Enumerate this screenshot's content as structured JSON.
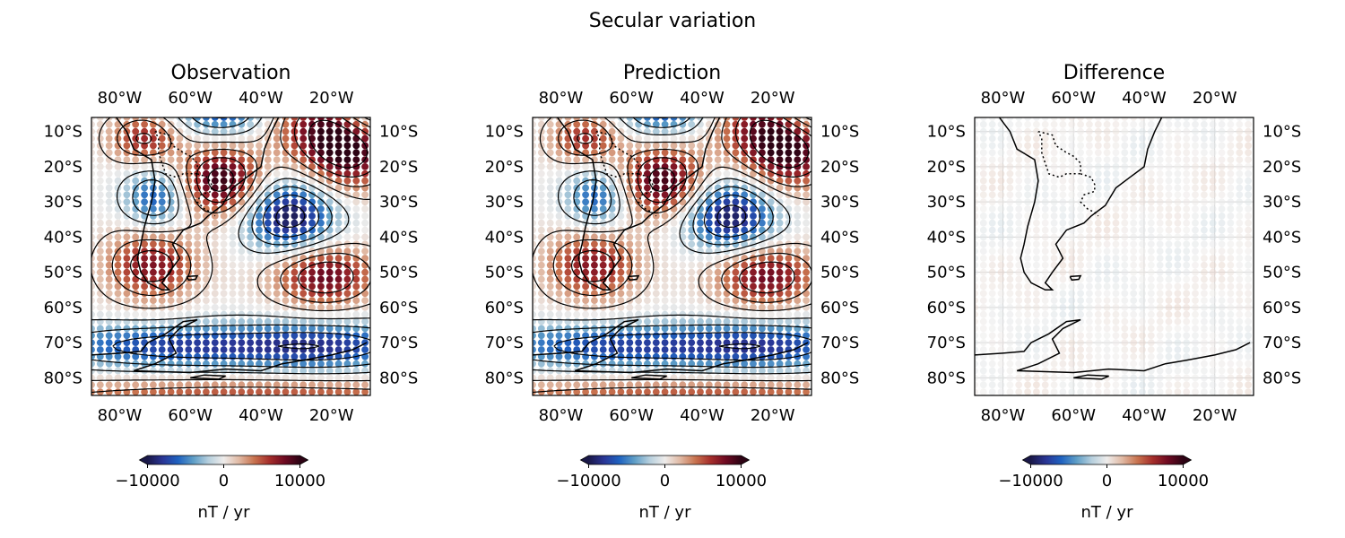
{
  "figure": {
    "title": "Secular variation"
  },
  "colormap": {
    "stops": [
      "#1a1848",
      "#2a3595",
      "#1f62c0",
      "#5e9dc6",
      "#b6cfdd",
      "#eeeceb",
      "#e0b9a4",
      "#c8734f",
      "#a52e2b",
      "#6e0a22",
      "#2d0314"
    ]
  },
  "colorbar": {
    "min": -10000,
    "max": 10000,
    "ticks": [
      "−10000",
      "0",
      "10000"
    ],
    "label": "nT / yr"
  },
  "panels": [
    {
      "title": "Observation",
      "show_contours": true,
      "x_ticks_top": [
        "80°W",
        "60°W",
        "40°W",
        "20°W"
      ],
      "x_ticks_bottom": [
        "80°W",
        "60°W",
        "40°W",
        "20°W"
      ],
      "y_ticks_left": [
        "10°S",
        "20°S",
        "30°S",
        "40°S",
        "50°S",
        "60°S",
        "70°S",
        "80°S"
      ],
      "y_ticks_right": [
        "10°S",
        "20°S",
        "30°S",
        "40°S",
        "50°S",
        "60°S",
        "70°S",
        "80°S"
      ]
    },
    {
      "title": "Prediction",
      "show_contours": true,
      "x_ticks_top": [
        "80°W",
        "60°W",
        "40°W",
        "20°W"
      ],
      "x_ticks_bottom": [
        "80°W",
        "60°W",
        "40°W",
        "20°W"
      ],
      "y_ticks_left": [
        "10°S",
        "20°S",
        "30°S",
        "40°S",
        "50°S",
        "60°S",
        "70°S",
        "80°S"
      ],
      "y_ticks_right": [
        "10°S",
        "20°S",
        "30°S",
        "40°S",
        "50°S",
        "60°S",
        "70°S",
        "80°S"
      ]
    },
    {
      "title": "Difference",
      "show_contours": false,
      "x_ticks_top": [
        "80°W",
        "60°W",
        "40°W",
        "20°W"
      ],
      "x_ticks_bottom": [
        "80°W",
        "60°W",
        "40°W",
        "20°W"
      ],
      "y_ticks_left": [
        "10°S",
        "20°S",
        "30°S",
        "40°S",
        "50°S",
        "60°S",
        "70°S",
        "80°S"
      ],
      "y_ticks_right": [
        "10°S",
        "20°S",
        "30°S",
        "40°S",
        "50°S",
        "60°S",
        "70°S",
        "80°S"
      ]
    }
  ],
  "map": {
    "lon_range": [
      -88,
      -9
    ],
    "lat_range": [
      -85,
      -6
    ]
  }
}
